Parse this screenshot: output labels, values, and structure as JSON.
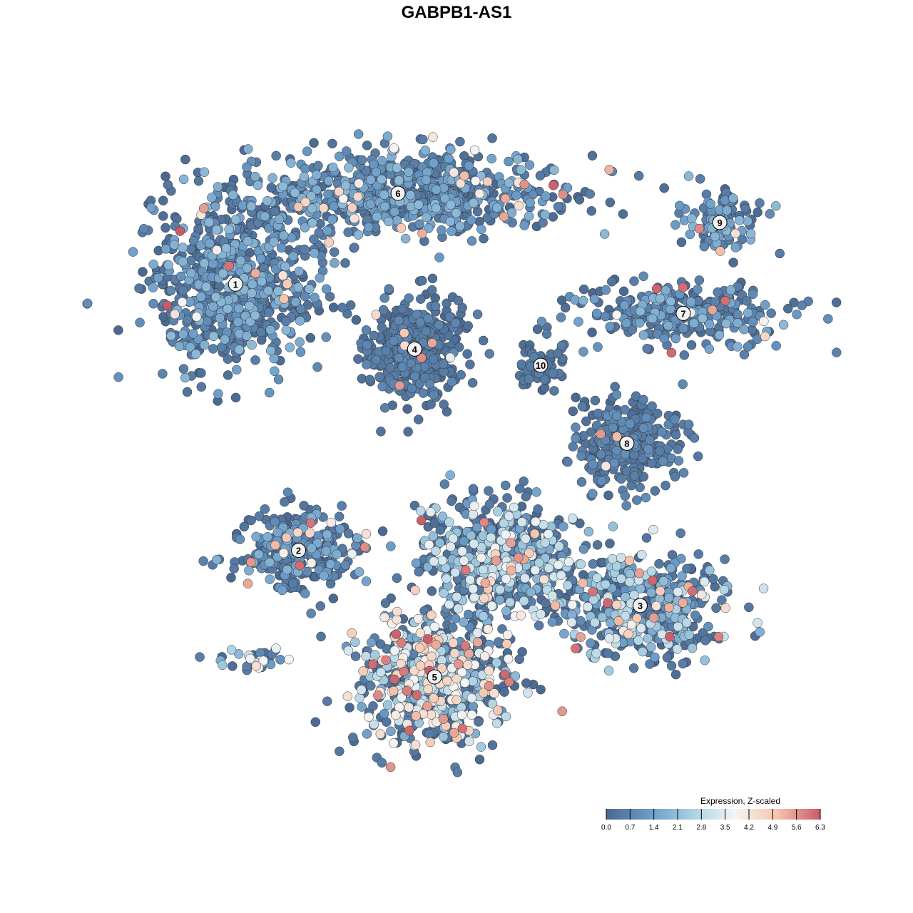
{
  "chart_data": {
    "type": "scatter",
    "title": "GABPB1-AS1",
    "xlabel": "",
    "ylabel": "",
    "grid": false,
    "axes_visible": false,
    "note_coordinates": "embedding units, approximate",
    "xlim": [
      -10,
      10
    ],
    "ylim": [
      -10,
      10
    ],
    "legend": {
      "title": "Expression, Z-scaled",
      "placement": "bottom-right",
      "ticks": [
        "0.0",
        "0.7",
        "1.4",
        "2.1",
        "2.8",
        "3.5",
        "4.2",
        "4.9",
        "5.6",
        "6.3"
      ],
      "range": [
        0,
        6.3
      ],
      "colors": [
        "#4a6890",
        "#6a9bc7",
        "#a8d0e3",
        "#f5f5f5",
        "#f5c4ab",
        "#c95a68"
      ]
    },
    "clusters": [
      {
        "label": "1",
        "center": [
          -7.2,
          5.2
        ],
        "spread": [
          2.4,
          2.3
        ],
        "n": 700,
        "mean_expr": 1.0
      },
      {
        "label": "6",
        "center": [
          -2.3,
          8.0
        ],
        "spread": [
          4.4,
          1.1
        ],
        "n": 750,
        "mean_expr": 1.0
      },
      {
        "label": "4",
        "center": [
          -1.8,
          3.2
        ],
        "spread": [
          1.3,
          1.4
        ],
        "n": 400,
        "mean_expr": 0.4
      },
      {
        "label": "10",
        "center": [
          2.0,
          2.7
        ],
        "spread": [
          0.6,
          0.7
        ],
        "n": 60,
        "mean_expr": 0.3
      },
      {
        "label": "7",
        "center": [
          6.3,
          4.3
        ],
        "spread": [
          2.8,
          0.9
        ],
        "n": 300,
        "mean_expr": 1.0
      },
      {
        "label": "9",
        "center": [
          7.4,
          7.1
        ],
        "spread": [
          1.0,
          0.9
        ],
        "n": 120,
        "mean_expr": 1.0
      },
      {
        "label": "8",
        "center": [
          4.6,
          0.3
        ],
        "spread": [
          1.4,
          1.3
        ],
        "n": 300,
        "mean_expr": 0.5
      },
      {
        "label": "2",
        "center": [
          -5.3,
          -3.0
        ],
        "spread": [
          1.8,
          1.1
        ],
        "n": 300,
        "mean_expr": 0.9
      },
      {
        "label": "3",
        "center": [
          5.0,
          -4.7
        ],
        "spread": [
          2.2,
          1.4
        ],
        "n": 500,
        "mean_expr": 1.7
      },
      {
        "label": "5",
        "center": [
          -1.2,
          -6.9
        ],
        "spread": [
          2.1,
          1.9
        ],
        "n": 650,
        "mean_expr": 2.4
      },
      {
        "label": "",
        "center": [
          0.8,
          -3.2
        ],
        "spread": [
          2.0,
          1.6
        ],
        "n": 600,
        "mean_expr": 1.8
      },
      {
        "label": "",
        "center": [
          -6.6,
          -6.4
        ],
        "spread": [
          1.0,
          0.4
        ],
        "n": 30,
        "mean_expr": 2.0
      }
    ]
  }
}
